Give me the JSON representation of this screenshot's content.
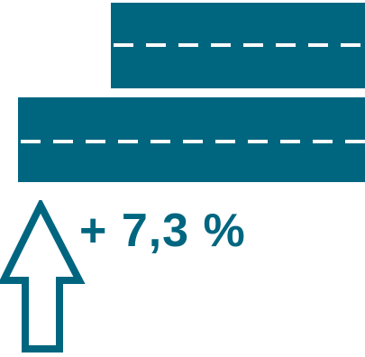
{
  "colors": {
    "primary": "#006680",
    "dash": "#ffffff",
    "background": "#ffffff"
  },
  "icons": {
    "road_top": "road-lane-icon",
    "road_bottom": "road-lane-icon",
    "arrow": "up-arrow-icon"
  },
  "change": {
    "text": "+ 7,3 %"
  }
}
